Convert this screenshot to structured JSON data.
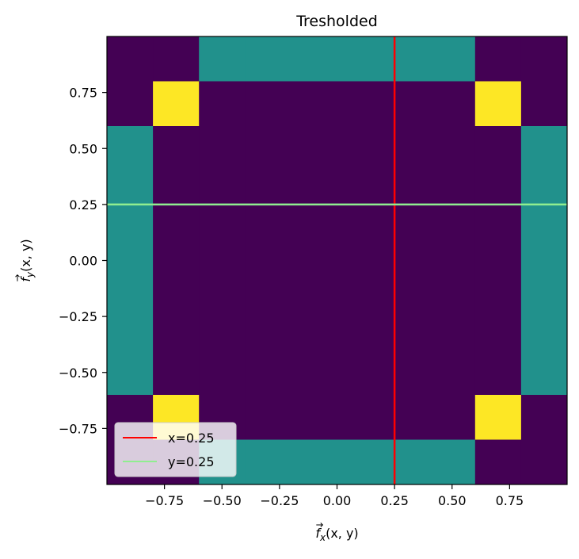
{
  "chart_data": {
    "type": "heatmap",
    "title": "Tresholded",
    "xlabel_sym": "f",
    "xlabel_sub": "x",
    "xlabel_args": "(x, y)",
    "ylabel_sym": "f",
    "ylabel_sub": "y",
    "ylabel_args": "(x, y)",
    "xlim": [
      -1.0,
      1.0
    ],
    "ylim": [
      -1.0,
      1.0
    ],
    "xticks": [
      -0.75,
      -0.5,
      -0.25,
      0.0,
      0.25,
      0.5,
      0.75
    ],
    "xtick_labels": [
      "−0.75",
      "−0.50",
      "−0.25",
      "0.00",
      "0.25",
      "0.50",
      "0.75"
    ],
    "yticks": [
      -0.75,
      -0.5,
      -0.25,
      0.0,
      0.25,
      0.5,
      0.75
    ],
    "ytick_labels": [
      "−0.75",
      "−0.50",
      "−0.25",
      "0.00",
      "0.25",
      "0.50",
      "0.75"
    ],
    "grid": false,
    "colormap": "viridis",
    "colors": {
      "0": "#440154",
      "1": "#21918c",
      "2": "#fde725"
    },
    "cell_edges": [
      -1.0,
      -0.8,
      -0.6,
      -0.4,
      -0.2,
      0.0,
      0.2,
      0.4,
      0.6,
      0.8,
      1.0
    ],
    "grid_values": [
      [
        0,
        0,
        1,
        1,
        1,
        1,
        1,
        1,
        0,
        0
      ],
      [
        0,
        2,
        0,
        0,
        0,
        0,
        0,
        0,
        2,
        0
      ],
      [
        1,
        0,
        0,
        0,
        0,
        0,
        0,
        0,
        0,
        1
      ],
      [
        1,
        0,
        0,
        0,
        0,
        0,
        0,
        0,
        0,
        1
      ],
      [
        1,
        0,
        0,
        0,
        0,
        0,
        0,
        0,
        0,
        1
      ],
      [
        1,
        0,
        0,
        0,
        0,
        0,
        0,
        0,
        0,
        1
      ],
      [
        1,
        0,
        0,
        0,
        0,
        0,
        0,
        0,
        0,
        1
      ],
      [
        1,
        0,
        0,
        0,
        0,
        0,
        0,
        0,
        0,
        1
      ],
      [
        0,
        2,
        0,
        0,
        0,
        0,
        0,
        0,
        2,
        0
      ],
      [
        0,
        0,
        1,
        1,
        1,
        1,
        1,
        1,
        0,
        0
      ]
    ],
    "lines": [
      {
        "name": "x=0.25",
        "orientation": "vertical",
        "value": 0.25,
        "color": "#ff0000"
      },
      {
        "name": "y=0.25",
        "orientation": "horizontal",
        "value": 0.25,
        "color": "#90ee90"
      }
    ],
    "legend_position": "lower-left"
  }
}
